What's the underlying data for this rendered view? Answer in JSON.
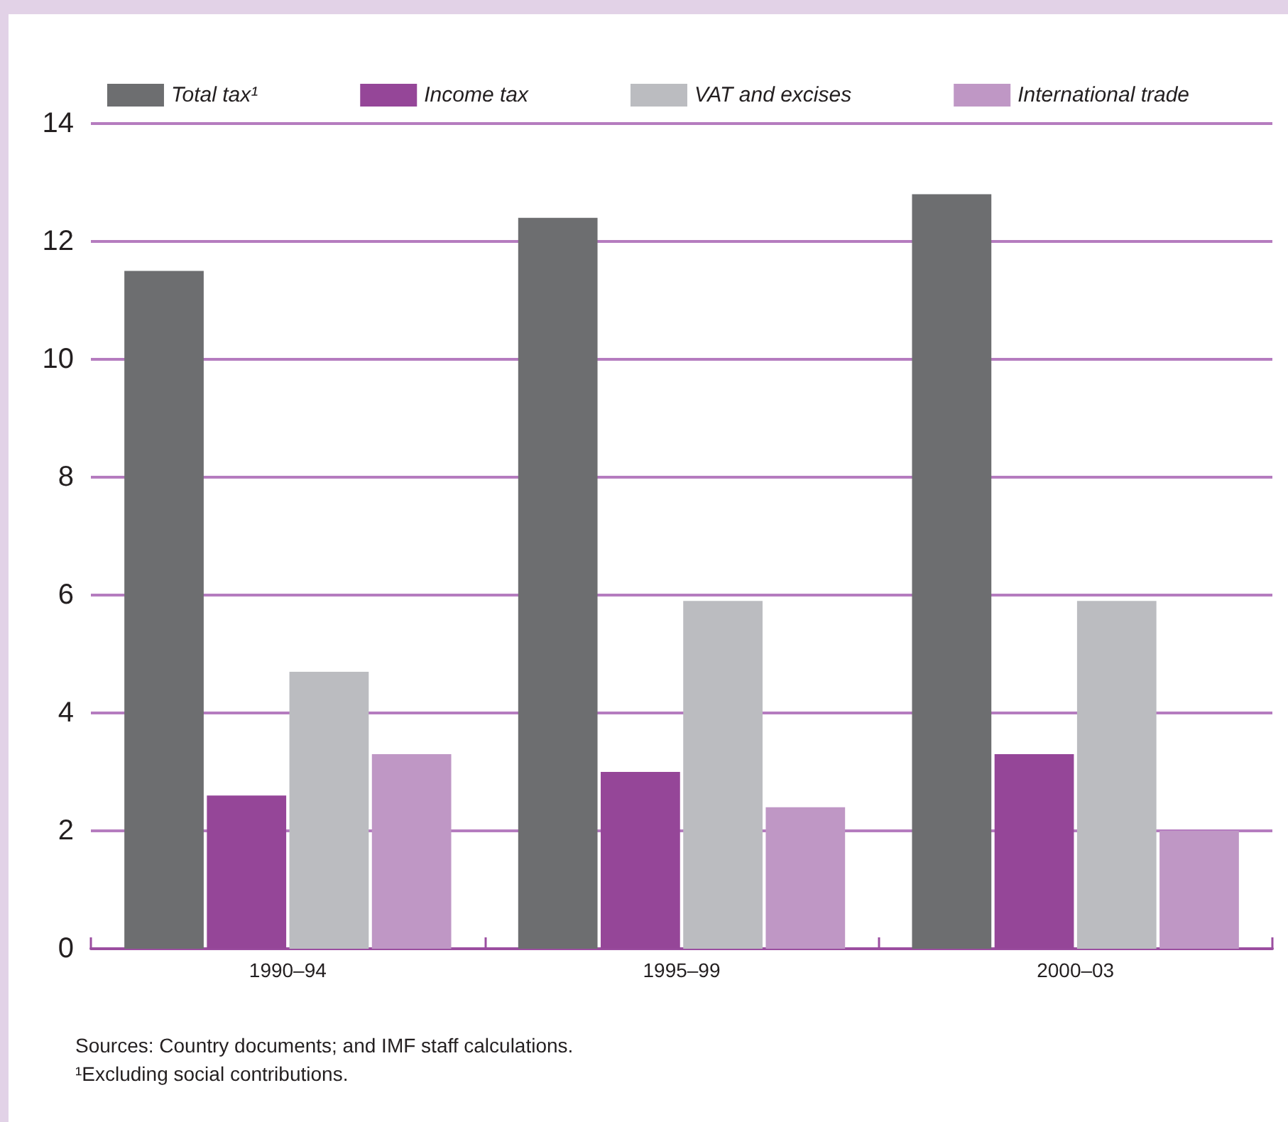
{
  "chart_data": {
    "type": "bar",
    "categories": [
      "1990–94",
      "1995–99",
      "2000–03"
    ],
    "series": [
      {
        "name": "Total tax¹",
        "color": "#6d6e70",
        "values": [
          11.5,
          12.4,
          12.8
        ]
      },
      {
        "name": "Income tax",
        "color": "#954698",
        "values": [
          2.6,
          3.0,
          3.3
        ]
      },
      {
        "name": "VAT and excises",
        "color": "#bbbcc0",
        "values": [
          4.7,
          5.9,
          5.9
        ]
      },
      {
        "name": "International trade",
        "color": "#bf97c5",
        "values": [
          3.3,
          2.4,
          2.0
        ]
      }
    ],
    "ylim": [
      0,
      14
    ],
    "yticks": [
      0,
      2,
      4,
      6,
      8,
      10,
      12,
      14
    ],
    "grid": "y",
    "legend": "top",
    "annotations": [
      "Sources: Country documents; and IMF staff calculations.",
      "¹Excluding social contributions."
    ]
  }
}
